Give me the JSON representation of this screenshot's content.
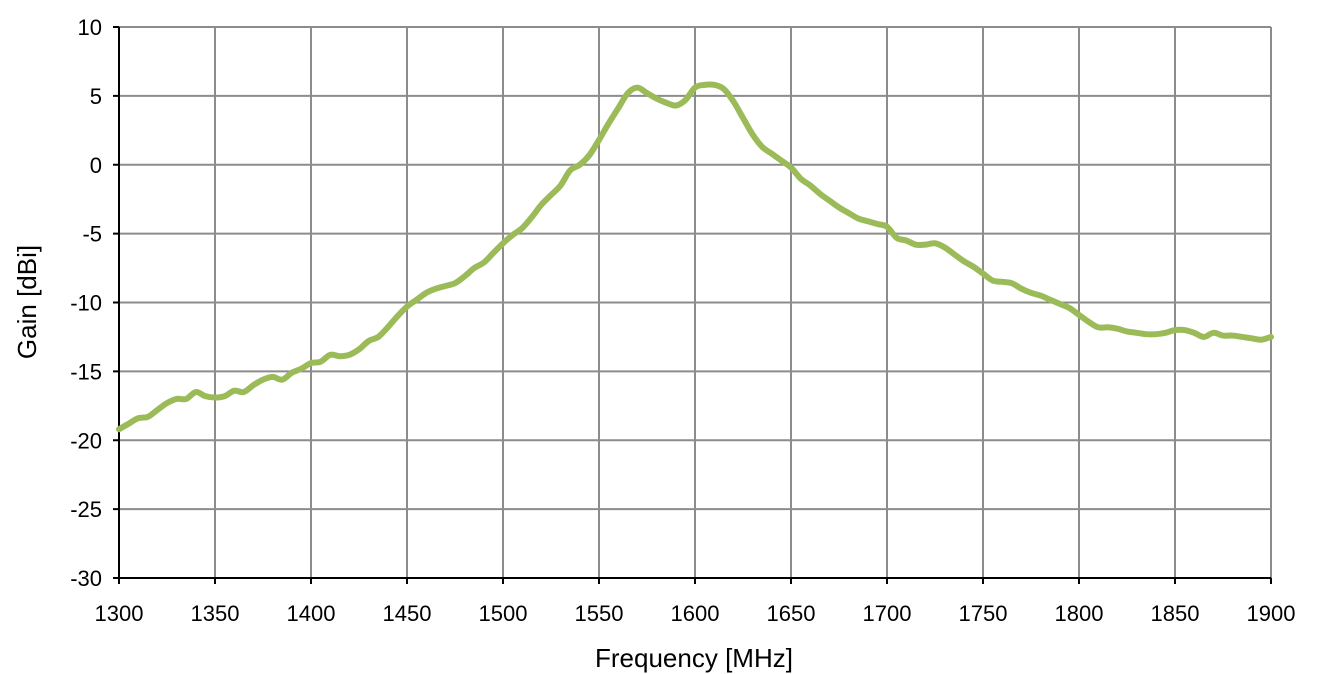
{
  "chart_data": {
    "type": "line",
    "title": "",
    "xlabel": "Frequency [MHz]",
    "ylabel": "Gain [dBi]",
    "xlim": [
      1300,
      1900
    ],
    "ylim": [
      -30,
      10
    ],
    "xticks": [
      1300,
      1350,
      1400,
      1450,
      1500,
      1550,
      1600,
      1650,
      1700,
      1750,
      1800,
      1850,
      1900
    ],
    "yticks": [
      -30,
      -25,
      -20,
      -15,
      -10,
      -5,
      0,
      5,
      10
    ],
    "grid": true,
    "legend": "none",
    "series": [
      {
        "color": "#9bbb59",
        "x": [
          1300,
          1305,
          1310,
          1315,
          1320,
          1325,
          1330,
          1335,
          1340,
          1345,
          1350,
          1355,
          1360,
          1365,
          1370,
          1375,
          1380,
          1385,
          1390,
          1395,
          1400,
          1405,
          1410,
          1415,
          1420,
          1425,
          1430,
          1435,
          1440,
          1445,
          1450,
          1455,
          1460,
          1465,
          1470,
          1475,
          1480,
          1485,
          1490,
          1495,
          1500,
          1505,
          1510,
          1515,
          1520,
          1525,
          1530,
          1535,
          1540,
          1545,
          1550,
          1555,
          1560,
          1565,
          1570,
          1575,
          1580,
          1585,
          1590,
          1595,
          1600,
          1605,
          1610,
          1615,
          1620,
          1625,
          1630,
          1635,
          1640,
          1645,
          1650,
          1655,
          1660,
          1665,
          1670,
          1675,
          1680,
          1685,
          1690,
          1695,
          1700,
          1705,
          1710,
          1715,
          1720,
          1725,
          1730,
          1735,
          1740,
          1745,
          1750,
          1755,
          1760,
          1765,
          1770,
          1775,
          1780,
          1785,
          1790,
          1795,
          1800,
          1805,
          1810,
          1815,
          1820,
          1825,
          1830,
          1835,
          1840,
          1845,
          1850,
          1855,
          1860,
          1865,
          1870,
          1875,
          1880,
          1885,
          1890,
          1895,
          1900
        ],
        "y": [
          -19.2,
          -18.8,
          -18.4,
          -18.3,
          -17.8,
          -17.3,
          -17.0,
          -17.0,
          -16.5,
          -16.8,
          -16.9,
          -16.8,
          -16.4,
          -16.5,
          -16.0,
          -15.6,
          -15.4,
          -15.6,
          -15.1,
          -14.8,
          -14.4,
          -14.3,
          -13.8,
          -13.9,
          -13.8,
          -13.4,
          -12.8,
          -12.5,
          -11.8,
          -11.0,
          -10.3,
          -9.8,
          -9.3,
          -9.0,
          -8.8,
          -8.6,
          -8.1,
          -7.5,
          -7.1,
          -6.4,
          -5.7,
          -5.1,
          -4.6,
          -3.8,
          -2.9,
          -2.2,
          -1.5,
          -0.4,
          0.0,
          0.7,
          1.8,
          3.0,
          4.1,
          5.2,
          5.6,
          5.2,
          4.8,
          4.5,
          4.3,
          4.7,
          5.6,
          5.8,
          5.8,
          5.5,
          4.6,
          3.4,
          2.2,
          1.3,
          0.8,
          0.3,
          -0.2,
          -1.0,
          -1.5,
          -2.1,
          -2.6,
          -3.1,
          -3.5,
          -3.9,
          -4.1,
          -4.3,
          -4.5,
          -5.3,
          -5.5,
          -5.8,
          -5.8,
          -5.7,
          -6.0,
          -6.5,
          -7.0,
          -7.4,
          -7.9,
          -8.4,
          -8.5,
          -8.6,
          -9.0,
          -9.3,
          -9.5,
          -9.8,
          -10.1,
          -10.4,
          -10.9,
          -11.4,
          -11.8,
          -11.8,
          -11.9,
          -12.1,
          -12.2,
          -12.3,
          -12.3,
          -12.2,
          -12.0,
          -12.0,
          -12.2,
          -12.5,
          -12.2,
          -12.4,
          -12.4,
          -12.5,
          -12.6,
          -12.7,
          -12.5
        ]
      }
    ]
  }
}
